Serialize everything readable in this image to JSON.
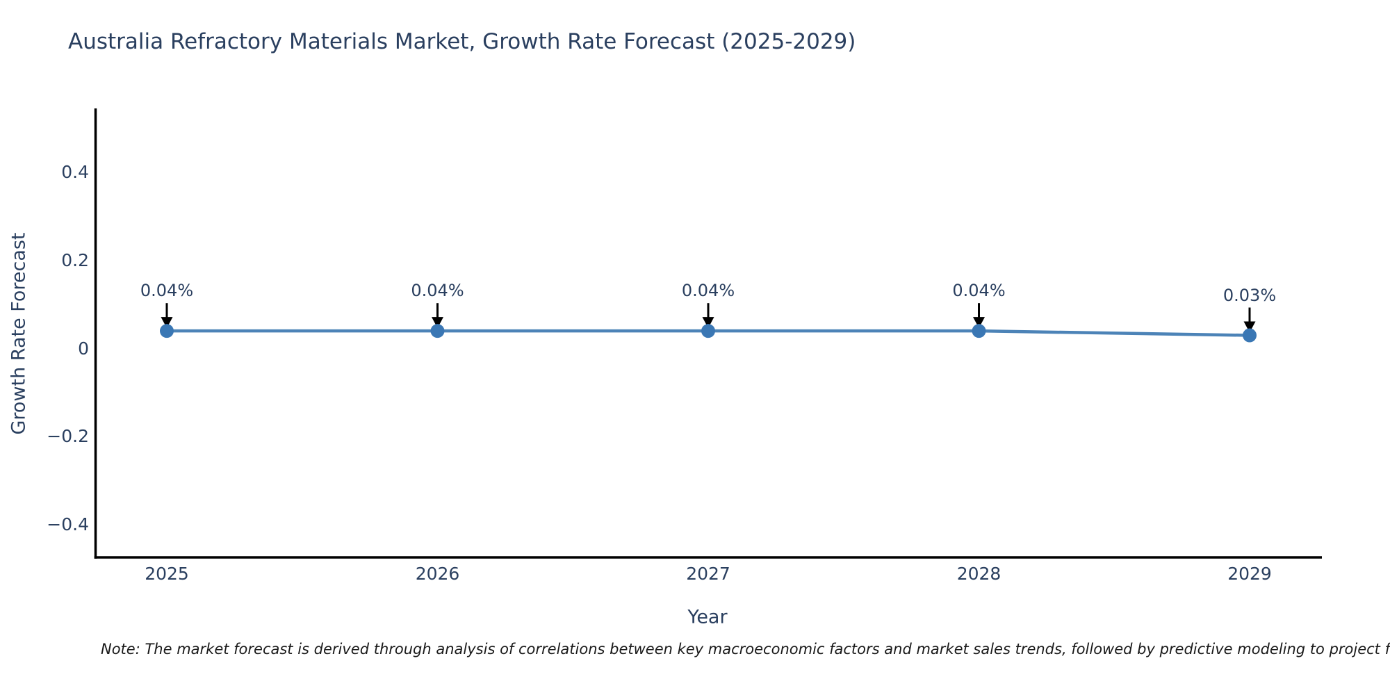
{
  "chart_data": {
    "type": "line",
    "title": "Australia Refractory Materials Market, Growth Rate Forecast (2025-2029)",
    "xlabel": "Year",
    "ylabel": "Growth Rate Forecast",
    "categories": [
      "2025",
      "2026",
      "2027",
      "2028",
      "2029"
    ],
    "series": [
      {
        "name": "Growth Rate Forecast",
        "values": [
          0.04,
          0.04,
          0.04,
          0.04,
          0.03
        ]
      }
    ],
    "point_labels": [
      "0.04%",
      "0.04%",
      "0.04%",
      "0.04%",
      "0.03%"
    ],
    "ytick_labels": [
      "0.4",
      "0.2",
      "0",
      "−0.2",
      "−0.4"
    ],
    "ytick_values": [
      0.4,
      0.2,
      0,
      -0.2,
      -0.4
    ],
    "ylim": [
      -0.5,
      0.54
    ],
    "grid": false,
    "legend_position": "none",
    "annotation_style": "downward-black-arrow",
    "note": "Note: The market forecast is derived through analysis of correlations between key macroeconomic factors and market sales trends, followed by predictive modeling to project future sa",
    "colors": {
      "background": "#ffffff",
      "text": "#2a3f5f",
      "line": "#4c83b7",
      "marker": "#3a77b4",
      "axis": "#000000",
      "arrow": "#000000",
      "note_text": "#1a1a1a"
    }
  }
}
